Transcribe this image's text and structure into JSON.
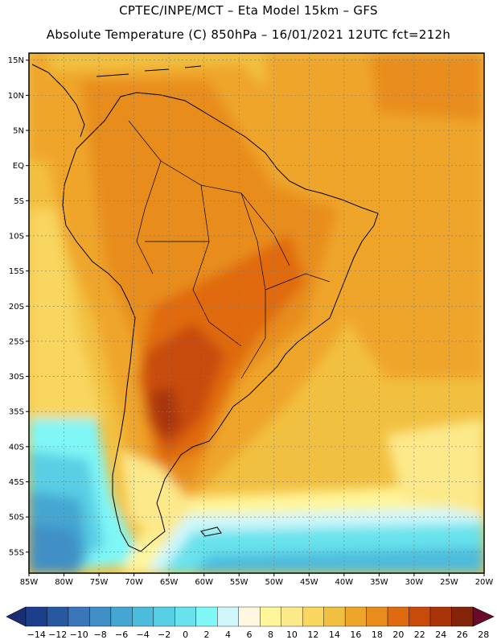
{
  "header": {
    "line1": "CPTEC/INPE/MCT –  Eta Model 15km – GFS",
    "line2": "Absolute Temperature (C) 850hPa – 16/01/2021 12UTC fct=212h"
  },
  "map": {
    "lat_labels": [
      "15N",
      "10N",
      "5N",
      "EQ",
      "5S",
      "10S",
      "15S",
      "20S",
      "25S",
      "30S",
      "35S",
      "40S",
      "45S",
      "50S",
      "55S"
    ],
    "lon_labels": [
      "85W",
      "80W",
      "75W",
      "70W",
      "65W",
      "60W",
      "55W",
      "50W",
      "45W",
      "40W",
      "35W",
      "30W",
      "25W",
      "20W"
    ],
    "lon_range": [
      -85,
      -20
    ],
    "lat_range": [
      -58,
      16
    ]
  },
  "colorbar": {
    "labels": [
      "-14",
      "-12",
      "-10",
      "-8",
      "-6",
      "-4",
      "-2",
      "0",
      "2",
      "4",
      "6",
      "8",
      "10",
      "12",
      "14",
      "16",
      "18",
      "20",
      "22",
      "24",
      "26",
      "28"
    ],
    "colors": [
      "#1c3f8c",
      "#2859a0",
      "#3a76b8",
      "#3f8fc6",
      "#45a6d2",
      "#4dbbdc",
      "#58cfe4",
      "#68e2ec",
      "#7ff7f7",
      "#cff7fb",
      "#fff7e0",
      "#fff59a",
      "#fce98a",
      "#f8d65f",
      "#f2c040",
      "#efa52a",
      "#e88d1c",
      "#e06a10",
      "#c84b0c",
      "#a83408",
      "#842408"
    ],
    "low_end_color": "#1a2f73",
    "high_end_color": "#6a0a28"
  }
}
